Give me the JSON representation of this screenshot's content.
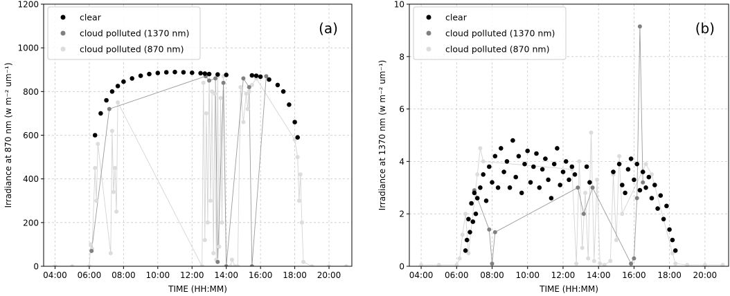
{
  "chart_data": [
    {
      "type": "scatter",
      "panel_label": "(a)",
      "xlabel": "TIME (HH:MM)",
      "ylabel": "Irradiance at 870 nm (w m⁻² um⁻¹)",
      "x_ticks": [
        "04:00",
        "06:00",
        "08:00",
        "10:00",
        "12:00",
        "14:00",
        "16:00",
        "18:00",
        "20:00"
      ],
      "xlim": [
        "03:20",
        "21:20"
      ],
      "ylim": [
        0,
        1200
      ],
      "y_ticks": [
        0,
        200,
        400,
        600,
        800,
        1000,
        1200
      ],
      "grid": true,
      "legend_position": "top-left",
      "series": [
        {
          "name": "clear",
          "color": "#000000",
          "points": [
            [
              "06:20",
              600
            ],
            [
              "06:40",
              700
            ],
            [
              "07:00",
              760
            ],
            [
              "07:20",
              800
            ],
            [
              "07:40",
              825
            ],
            [
              "08:00",
              845
            ],
            [
              "08:30",
              860
            ],
            [
              "09:00",
              872
            ],
            [
              "09:30",
              880
            ],
            [
              "10:00",
              885
            ],
            [
              "10:30",
              888
            ],
            [
              "11:00",
              889
            ],
            [
              "11:30",
              888
            ],
            [
              "12:00",
              886
            ],
            [
              "12:30",
              884
            ],
            [
              "12:45",
              882
            ],
            [
              "13:00",
              880
            ],
            [
              "13:30",
              878
            ],
            [
              "14:00",
              876
            ],
            [
              "15:30",
              874
            ],
            [
              "15:45",
              872
            ],
            [
              "16:00",
              868
            ],
            [
              "16:30",
              855
            ],
            [
              "17:00",
              830
            ],
            [
              "17:20",
              800
            ],
            [
              "17:40",
              740
            ],
            [
              "18:00",
              660
            ],
            [
              "18:10",
              590
            ]
          ]
        },
        {
          "name": "cloud polluted (1370 nm)",
          "color": "#808080",
          "points": [
            [
              "06:08",
              70
            ],
            [
              "07:10",
              720
            ],
            [
              "12:48",
              870
            ],
            [
              "13:00",
              850
            ],
            [
              "13:22",
              860
            ],
            [
              "13:30",
              20
            ],
            [
              "13:50",
              840
            ],
            [
              "14:00",
              0
            ],
            [
              "15:00",
              860
            ],
            [
              "15:20",
              820
            ],
            [
              "15:30",
              0
            ],
            [
              "16:20",
              870
            ]
          ]
        },
        {
          "name": "cloud polluted (870 nm)",
          "color": "#dcdcdc",
          "points": [
            [
              "04:00",
              0
            ],
            [
              "05:00",
              0
            ],
            [
              "06:00",
              0
            ],
            [
              "06:05",
              100
            ],
            [
              "06:10",
              80
            ],
            [
              "06:20",
              450
            ],
            [
              "06:25",
              300
            ],
            [
              "06:30",
              560
            ],
            [
              "07:15",
              60
            ],
            [
              "07:20",
              620
            ],
            [
              "07:25",
              340
            ],
            [
              "07:30",
              450
            ],
            [
              "07:35",
              250
            ],
            [
              "07:40",
              750
            ],
            [
              "12:35",
              0
            ],
            [
              "12:40",
              840
            ],
            [
              "12:45",
              120
            ],
            [
              "12:50",
              700
            ],
            [
              "12:55",
              200
            ],
            [
              "13:00",
              880
            ],
            [
              "13:05",
              300
            ],
            [
              "13:10",
              800
            ],
            [
              "13:15",
              60
            ],
            [
              "13:20",
              790
            ],
            [
              "13:25",
              30
            ],
            [
              "13:30",
              870
            ],
            [
              "13:35",
              90
            ],
            [
              "13:40",
              770
            ],
            [
              "13:45",
              200
            ],
            [
              "13:50",
              870
            ],
            [
              "14:00",
              0
            ],
            [
              "14:15",
              0
            ],
            [
              "14:20",
              30
            ],
            [
              "14:30",
              0
            ],
            [
              "14:40",
              0
            ],
            [
              "14:50",
              820
            ],
            [
              "15:00",
              660
            ],
            [
              "15:10",
              790
            ],
            [
              "15:15",
              720
            ],
            [
              "15:20",
              800
            ],
            [
              "15:30",
              830
            ],
            [
              "15:45",
              860
            ],
            [
              "18:00",
              580
            ],
            [
              "18:10",
              500
            ],
            [
              "18:15",
              300
            ],
            [
              "18:20",
              420
            ],
            [
              "18:25",
              200
            ],
            [
              "18:30",
              20
            ],
            [
              "19:00",
              0
            ],
            [
              "20:00",
              0
            ],
            [
              "21:00",
              0
            ]
          ]
        }
      ]
    },
    {
      "type": "scatter",
      "panel_label": "(b)",
      "xlabel": "TIME (HH:MM)",
      "ylabel": "Irradiance at 1370 nm (w m⁻² um⁻¹)",
      "x_ticks": [
        "04:00",
        "06:00",
        "08:00",
        "10:00",
        "12:00",
        "14:00",
        "16:00",
        "18:00",
        "20:00"
      ],
      "xlim": [
        "03:20",
        "21:20"
      ],
      "ylim": [
        0,
        10
      ],
      "y_ticks": [
        0,
        2,
        4,
        6,
        8,
        10
      ],
      "grid": true,
      "legend_position": "top-left",
      "series": [
        {
          "name": "clear",
          "color": "#000000",
          "points": [
            [
              "06:30",
              0.6
            ],
            [
              "06:35",
              1.0
            ],
            [
              "06:40",
              1.8
            ],
            [
              "06:45",
              1.3
            ],
            [
              "06:50",
              2.4
            ],
            [
              "06:55",
              1.7
            ],
            [
              "07:00",
              2.8
            ],
            [
              "07:05",
              2.0
            ],
            [
              "07:10",
              2.6
            ],
            [
              "07:20",
              3.0
            ],
            [
              "07:30",
              3.5
            ],
            [
              "07:40",
              2.5
            ],
            [
              "07:50",
              3.8
            ],
            [
              "08:00",
              3.2
            ],
            [
              "08:10",
              4.2
            ],
            [
              "08:20",
              3.0
            ],
            [
              "08:30",
              4.5
            ],
            [
              "08:40",
              3.6
            ],
            [
              "08:50",
              4.0
            ],
            [
              "09:00",
              3.0
            ],
            [
              "09:10",
              4.8
            ],
            [
              "09:20",
              3.4
            ],
            [
              "09:30",
              4.2
            ],
            [
              "09:40",
              2.8
            ],
            [
              "09:50",
              3.9
            ],
            [
              "10:00",
              4.4
            ],
            [
              "10:10",
              3.2
            ],
            [
              "10:20",
              3.8
            ],
            [
              "10:30",
              4.3
            ],
            [
              "10:40",
              3.0
            ],
            [
              "10:50",
              3.7
            ],
            [
              "11:00",
              4.1
            ],
            [
              "11:10",
              3.3
            ],
            [
              "11:20",
              2.6
            ],
            [
              "11:30",
              3.9
            ],
            [
              "11:40",
              4.5
            ],
            [
              "11:50",
              3.1
            ],
            [
              "12:00",
              3.6
            ],
            [
              "12:10",
              4.0
            ],
            [
              "12:20",
              3.3
            ],
            [
              "12:30",
              3.8
            ],
            [
              "12:40",
              3.5
            ],
            [
              "13:20",
              3.8
            ],
            [
              "13:30",
              3.2
            ],
            [
              "14:50",
              3.6
            ],
            [
              "15:10",
              3.9
            ],
            [
              "15:20",
              3.1
            ],
            [
              "15:30",
              2.8
            ],
            [
              "15:40",
              3.7
            ],
            [
              "15:50",
              4.1
            ],
            [
              "16:00",
              3.3
            ],
            [
              "16:10",
              3.9
            ],
            [
              "16:20",
              2.9
            ],
            [
              "16:30",
              3.6
            ],
            [
              "16:40",
              3.0
            ],
            [
              "16:50",
              3.4
            ],
            [
              "17:00",
              2.6
            ],
            [
              "17:10",
              3.1
            ],
            [
              "17:20",
              2.2
            ],
            [
              "17:30",
              2.7
            ],
            [
              "17:40",
              1.8
            ],
            [
              "17:50",
              2.3
            ],
            [
              "18:00",
              1.4
            ],
            [
              "18:10",
              1.0
            ],
            [
              "18:20",
              0.6
            ]
          ]
        },
        {
          "name": "cloud polluted (1370 nm)",
          "color": "#808080",
          "points": [
            [
              "07:00",
              2.9
            ],
            [
              "07:50",
              1.4
            ],
            [
              "08:00",
              0.1
            ],
            [
              "08:10",
              1.3
            ],
            [
              "12:50",
              3.0
            ],
            [
              "13:10",
              2.0
            ],
            [
              "13:40",
              3.0
            ],
            [
              "15:50",
              0.1
            ],
            [
              "16:00",
              0.3
            ],
            [
              "16:10",
              2.6
            ],
            [
              "16:20",
              9.15
            ],
            [
              "16:30",
              3.2
            ]
          ]
        },
        {
          "name": "cloud polluted (870 nm)",
          "color": "#dcdcdc",
          "points": [
            [
              "04:00",
              0.05
            ],
            [
              "05:00",
              0.05
            ],
            [
              "06:00",
              0.05
            ],
            [
              "06:10",
              0.3
            ],
            [
              "06:20",
              1.2
            ],
            [
              "06:30",
              2.0
            ],
            [
              "06:40",
              0.5
            ],
            [
              "07:10",
              3.5
            ],
            [
              "07:20",
              4.5
            ],
            [
              "07:30",
              4.0
            ],
            [
              "12:30",
              3.7
            ],
            [
              "12:45",
              0.1
            ],
            [
              "12:55",
              4.0
            ],
            [
              "13:05",
              0.7
            ],
            [
              "13:15",
              2.8
            ],
            [
              "13:25",
              0.3
            ],
            [
              "13:35",
              5.1
            ],
            [
              "13:45",
              0.2
            ],
            [
              "13:55",
              3.3
            ],
            [
              "14:05",
              0.1
            ],
            [
              "14:20",
              0.05
            ],
            [
              "14:40",
              0.2
            ],
            [
              "14:50",
              3.5
            ],
            [
              "15:00",
              1.0
            ],
            [
              "15:10",
              4.2
            ],
            [
              "15:20",
              2.0
            ],
            [
              "16:40",
              3.9
            ],
            [
              "17:00",
              3.5
            ],
            [
              "18:10",
              0.5
            ],
            [
              "18:20",
              0.1
            ],
            [
              "19:00",
              0.05
            ],
            [
              "20:00",
              0.05
            ],
            [
              "21:00",
              0.05
            ]
          ]
        }
      ]
    }
  ]
}
